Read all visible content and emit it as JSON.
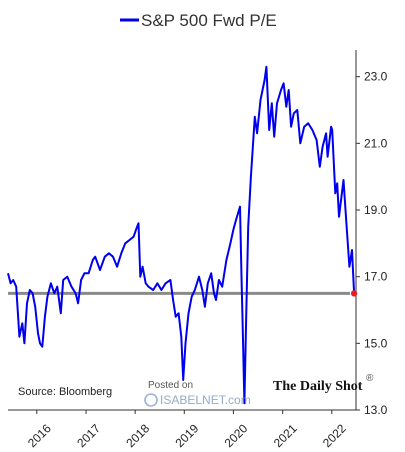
{
  "chart_data": {
    "type": "line",
    "title": "",
    "xlabel": "",
    "ylabel": "",
    "ylim": [
      13.0,
      23.8
    ],
    "xlim": [
      "2015-06-01",
      "2022-06-30"
    ],
    "y_ticks": [
      "23.0",
      "21.0",
      "19.0",
      "17.0",
      "15.0",
      "13.0"
    ],
    "x_ticks": [
      "2016",
      "2017",
      "2018",
      "2019",
      "2020",
      "2021",
      "2022"
    ],
    "grid": false,
    "legend_position": "top-center",
    "series": [
      {
        "name": "S&P 500 Fwd P/E",
        "color": "#0000ee",
        "points": [
          [
            "2015-06-01",
            17.1
          ],
          [
            "2015-06-20",
            16.8
          ],
          [
            "2015-07-10",
            16.9
          ],
          [
            "2015-08-01",
            16.7
          ],
          [
            "2015-08-25",
            15.2
          ],
          [
            "2015-09-15",
            15.6
          ],
          [
            "2015-10-01",
            15.0
          ],
          [
            "2015-10-20",
            16.2
          ],
          [
            "2015-11-10",
            16.6
          ],
          [
            "2015-12-01",
            16.5
          ],
          [
            "2015-12-20",
            16.1
          ],
          [
            "2016-01-10",
            15.3
          ],
          [
            "2016-01-25",
            15.0
          ],
          [
            "2016-02-11",
            14.9
          ],
          [
            "2016-03-01",
            15.8
          ],
          [
            "2016-03-20",
            16.4
          ],
          [
            "2016-04-15",
            16.8
          ],
          [
            "2016-05-10",
            16.5
          ],
          [
            "2016-06-01",
            16.7
          ],
          [
            "2016-06-27",
            15.9
          ],
          [
            "2016-07-15",
            16.9
          ],
          [
            "2016-08-15",
            17.0
          ],
          [
            "2016-09-15",
            16.7
          ],
          [
            "2016-10-15",
            16.5
          ],
          [
            "2016-11-03",
            16.2
          ],
          [
            "2016-11-25",
            16.9
          ],
          [
            "2016-12-20",
            17.1
          ],
          [
            "2017-01-20",
            17.1
          ],
          [
            "2017-02-20",
            17.5
          ],
          [
            "2017-03-10",
            17.6
          ],
          [
            "2017-04-15",
            17.2
          ],
          [
            "2017-05-20",
            17.6
          ],
          [
            "2017-06-20",
            17.7
          ],
          [
            "2017-07-20",
            17.6
          ],
          [
            "2017-08-20",
            17.3
          ],
          [
            "2017-09-20",
            17.7
          ],
          [
            "2017-10-20",
            18.0
          ],
          [
            "2017-11-20",
            18.1
          ],
          [
            "2017-12-20",
            18.2
          ],
          [
            "2018-01-15",
            18.5
          ],
          [
            "2018-01-26",
            18.6
          ],
          [
            "2018-02-08",
            17.0
          ],
          [
            "2018-02-25",
            17.3
          ],
          [
            "2018-03-20",
            16.8
          ],
          [
            "2018-04-10",
            16.7
          ],
          [
            "2018-05-15",
            16.6
          ],
          [
            "2018-06-15",
            16.8
          ],
          [
            "2018-07-15",
            16.6
          ],
          [
            "2018-08-15",
            16.8
          ],
          [
            "2018-09-20",
            16.9
          ],
          [
            "2018-10-10",
            16.3
          ],
          [
            "2018-10-29",
            15.8
          ],
          [
            "2018-11-20",
            15.9
          ],
          [
            "2018-12-10",
            15.2
          ],
          [
            "2018-12-24",
            13.9
          ],
          [
            "2019-01-10",
            15.0
          ],
          [
            "2019-02-01",
            15.9
          ],
          [
            "2019-02-25",
            16.4
          ],
          [
            "2019-03-20",
            16.6
          ],
          [
            "2019-04-20",
            17.0
          ],
          [
            "2019-05-15",
            16.6
          ],
          [
            "2019-06-03",
            16.1
          ],
          [
            "2019-06-25",
            16.8
          ],
          [
            "2019-07-20",
            17.1
          ],
          [
            "2019-08-10",
            16.5
          ],
          [
            "2019-08-25",
            16.3
          ],
          [
            "2019-09-15",
            16.9
          ],
          [
            "2019-10-10",
            16.7
          ],
          [
            "2019-11-10",
            17.5
          ],
          [
            "2019-12-10",
            18.0
          ],
          [
            "2019-12-31",
            18.4
          ],
          [
            "2020-01-20",
            18.7
          ],
          [
            "2020-02-19",
            19.1
          ],
          [
            "2020-03-01",
            17.0
          ],
          [
            "2020-03-10",
            15.5
          ],
          [
            "2020-03-23",
            13.2
          ],
          [
            "2020-04-05",
            15.8
          ],
          [
            "2020-04-20",
            18.5
          ],
          [
            "2020-05-10",
            20.0
          ],
          [
            "2020-06-08",
            21.8
          ],
          [
            "2020-06-25",
            21.3
          ],
          [
            "2020-07-20",
            22.3
          ],
          [
            "2020-08-20",
            22.9
          ],
          [
            "2020-09-02",
            23.3
          ],
          [
            "2020-09-23",
            21.4
          ],
          [
            "2020-10-12",
            22.2
          ],
          [
            "2020-10-30",
            21.2
          ],
          [
            "2020-11-20",
            22.2
          ],
          [
            "2020-12-20",
            22.6
          ],
          [
            "2021-01-08",
            22.8
          ],
          [
            "2021-01-28",
            22.1
          ],
          [
            "2021-02-15",
            22.6
          ],
          [
            "2021-03-05",
            21.5
          ],
          [
            "2021-03-25",
            21.9
          ],
          [
            "2021-04-20",
            22.0
          ],
          [
            "2021-05-12",
            21.0
          ],
          [
            "2021-06-10",
            21.5
          ],
          [
            "2021-07-10",
            21.6
          ],
          [
            "2021-08-10",
            21.4
          ],
          [
            "2021-09-10",
            21.1
          ],
          [
            "2021-10-04",
            20.3
          ],
          [
            "2021-10-25",
            20.9
          ],
          [
            "2021-11-20",
            21.3
          ],
          [
            "2021-12-01",
            20.6
          ],
          [
            "2021-12-27",
            21.5
          ],
          [
            "2022-01-04",
            21.4
          ],
          [
            "2022-01-27",
            19.5
          ],
          [
            "2022-02-10",
            19.8
          ],
          [
            "2022-02-24",
            18.8
          ],
          [
            "2022-03-29",
            19.9
          ],
          [
            "2022-04-20",
            18.6
          ],
          [
            "2022-05-12",
            17.3
          ],
          [
            "2022-05-31",
            17.8
          ],
          [
            "2022-06-16",
            16.5
          ]
        ]
      }
    ],
    "reference_line": {
      "value": 16.5,
      "color": "#8a8a8a"
    },
    "end_marker": {
      "date": "2022-06-16",
      "value": 16.5,
      "color": "#e0222a"
    }
  },
  "legend_label": "S&P 500 Fwd P/E",
  "source_label": "Source: Bloomberg",
  "credit_label": "The Daily Shot",
  "credit_mark": "®",
  "posted_on_label": "Posted on",
  "watermark_label": "ISABELNET.com"
}
